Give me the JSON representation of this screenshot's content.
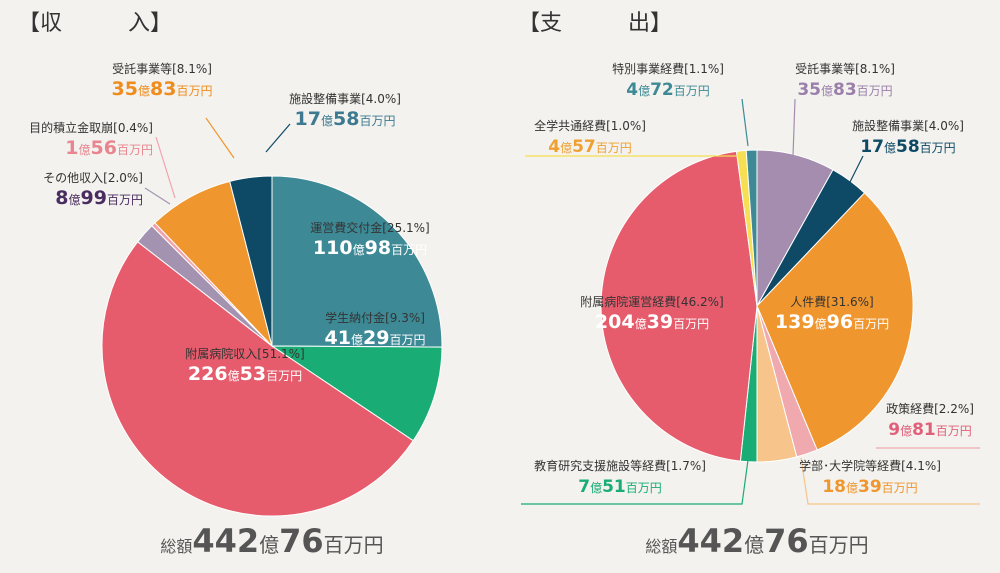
{
  "chart_data": [
    {
      "type": "pie",
      "title": "【収　　　入】",
      "total": {
        "prefix": "総額",
        "v1": "442",
        "u1": "億",
        "v2": "76",
        "u2": "百万円"
      },
      "slices": [
        {
          "name": "運営費交付金",
          "pct": "[25.1%]",
          "value": 25.1,
          "oku": "110",
          "hyaku": "98",
          "color": "#3d8a96",
          "label_color": "#ffffff",
          "val_color": "#ffffff"
        },
        {
          "name": "学生納付金",
          "pct": "[9.3%]",
          "value": 9.3,
          "oku": "41",
          "hyaku": "29",
          "color": "#19ad75",
          "label_color": "#ffffff",
          "val_color": "#ffffff"
        },
        {
          "name": "附属病院収入",
          "pct": "[51.1%]",
          "value": 51.1,
          "oku": "226",
          "hyaku": "53",
          "color": "#e65c6c",
          "label_color": "#ffffff",
          "val_color": "#ffffff"
        },
        {
          "name": "その他収入",
          "pct": "[2.0%]",
          "value": 2.0,
          "oku": "8",
          "hyaku": "99",
          "color": "#a493b0",
          "label_color": "#333333",
          "val_color": "#4a2d60"
        },
        {
          "name": "目的積立金取崩",
          "pct": "[0.4%]",
          "value": 0.4,
          "oku": "1",
          "hyaku": "56",
          "color": "#f0a3ad",
          "label_color": "#333333",
          "val_color": "#e8858f"
        },
        {
          "name": "受託事業等",
          "pct": "[8.1%]",
          "value": 8.1,
          "oku": "35",
          "hyaku": "83",
          "color": "#f0962e",
          "label_color": "#333333",
          "val_color": "#ee8c1e"
        },
        {
          "name": "施設整備事業",
          "pct": "[4.0%]",
          "value": 4.0,
          "oku": "17",
          "hyaku": "58",
          "color": "#0e4a66",
          "label_color": "#333333",
          "val_color": "#3d7a91"
        }
      ]
    },
    {
      "type": "pie",
      "title": "【支　　　出】",
      "total": {
        "prefix": "総額",
        "v1": "442",
        "u1": "億",
        "v2": "76",
        "u2": "百万円"
      },
      "slices": [
        {
          "name": "受託事業等",
          "pct": "[8.1%]",
          "value": 8.1,
          "oku": "35",
          "hyaku": "83",
          "color": "#a58db0",
          "label_color": "#333333",
          "val_color": "#9a7fab"
        },
        {
          "name": "施設整備事業",
          "pct": "[4.0%]",
          "value": 4.0,
          "oku": "17",
          "hyaku": "58",
          "color": "#0e4a66",
          "label_color": "#333333",
          "val_color": "#0e4a66"
        },
        {
          "name": "人件費",
          "pct": "[31.6%]",
          "value": 31.6,
          "oku": "139",
          "hyaku": "96",
          "color": "#ef962f",
          "label_color": "#ffffff",
          "val_color": "#ffffff"
        },
        {
          "name": "政策経費",
          "pct": "[2.2%]",
          "value": 2.2,
          "oku": "9",
          "hyaku": "81",
          "color": "#f0a9ae",
          "label_color": "#333333",
          "val_color": "#e0607a"
        },
        {
          "name": "学部･大学院等経費",
          "pct": "[4.1%]",
          "value": 4.1,
          "oku": "18",
          "hyaku": "39",
          "color": "#f7c48b",
          "label_color": "#333333",
          "val_color": "#ef962f"
        },
        {
          "name": "教育研究支援施設等経費",
          "pct": "[1.7%]",
          "value": 1.7,
          "oku": "7",
          "hyaku": "51",
          "color": "#19ad75",
          "label_color": "#333333",
          "val_color": "#19ad75"
        },
        {
          "name": "附属病院運営経費",
          "pct": "[46.2%]",
          "value": 46.2,
          "oku": "204",
          "hyaku": "39",
          "color": "#e65c6c",
          "label_color": "#333333",
          "val_color": "#ffffff"
        },
        {
          "name": "全学共通経費",
          "pct": "[1.0%]",
          "value": 1.0,
          "oku": "4",
          "hyaku": "57",
          "color": "#f6df52",
          "label_color": "#333333",
          "val_color": "#f0a030"
        },
        {
          "name": "特別事業経費",
          "pct": "[1.1%]",
          "value": 1.1,
          "oku": "4",
          "hyaku": "72",
          "color": "#3d8a96",
          "label_color": "#333333",
          "val_color": "#3d8a96"
        }
      ]
    }
  ]
}
